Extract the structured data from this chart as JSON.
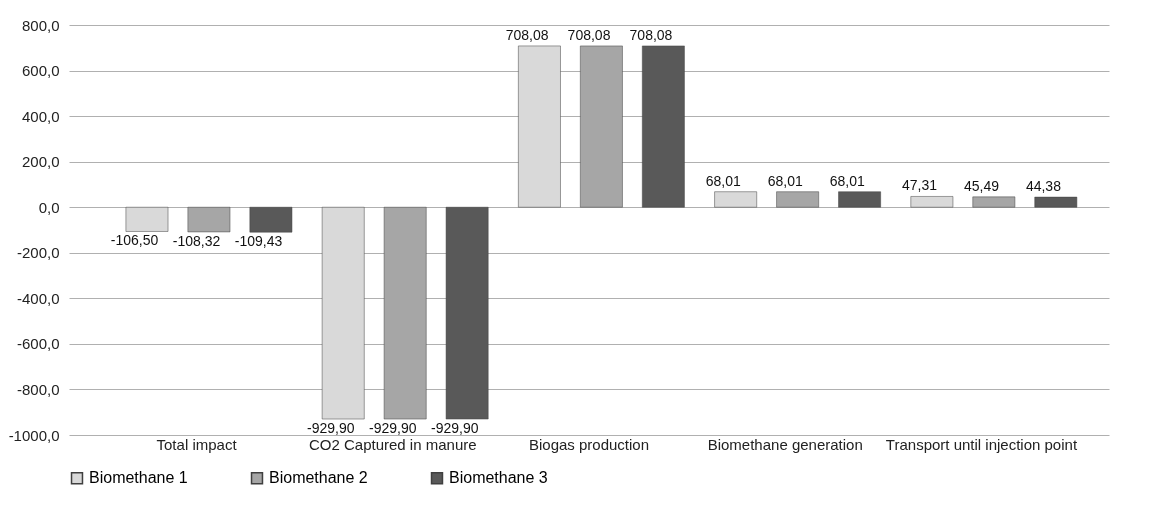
{
  "chart_data": {
    "type": "bar",
    "categories": [
      "Total impact",
      "CO2 Captured in manure",
      "Biogas production",
      "Biomethane generation",
      "Transport until injection point"
    ],
    "series": [
      {
        "name": "Biomethane 1",
        "color": "#d9d9d9",
        "values": [
          -106.5,
          -929.9,
          708.08,
          68.01,
          47.31
        ],
        "value_labels": [
          "-106,50",
          "-929,90",
          "708,08",
          "68,01",
          "47,31"
        ]
      },
      {
        "name": "Biomethane 2",
        "color": "#a6a6a6",
        "values": [
          -108.32,
          -929.9,
          708.08,
          68.01,
          45.49
        ],
        "value_labels": [
          "-108,32",
          "-929,90",
          "708,08",
          "68,01",
          "45,49"
        ]
      },
      {
        "name": "Biomethane 3",
        "color": "#595959",
        "values": [
          -109.43,
          -929.9,
          708.08,
          68.01,
          44.38
        ],
        "value_labels": [
          "-109,43",
          "-929,90",
          "708,08",
          "68,01",
          "44,38"
        ]
      }
    ],
    "ylim": [
      -1000,
      800
    ],
    "yticks": [
      {
        "value": -1000,
        "label": "-1000,0"
      },
      {
        "value": -800,
        "label": "-800,0"
      },
      {
        "value": -600,
        "label": "-600,0"
      },
      {
        "value": -400,
        "label": "-400,0"
      },
      {
        "value": -200,
        "label": "-200,0"
      },
      {
        "value": 0,
        "label": "0,0"
      },
      {
        "value": 200,
        "label": "200,0"
      },
      {
        "value": 400,
        "label": "400,0"
      },
      {
        "value": 600,
        "label": "600,0"
      },
      {
        "value": 800,
        "label": "800,0"
      }
    ],
    "grid": "y",
    "legend": "bottom"
  }
}
